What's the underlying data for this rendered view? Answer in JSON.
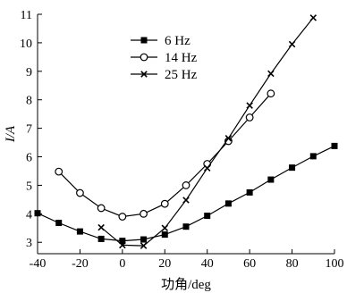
{
  "chart_data": {
    "type": "line",
    "title": "",
    "xlabel": "功角/deg",
    "ylabel": "I/A",
    "xlim": [
      -40,
      100
    ],
    "ylim": [
      2.6,
      11
    ],
    "xticks": [
      -40,
      -20,
      0,
      20,
      40,
      60,
      80,
      100
    ],
    "yticks": [
      3,
      4,
      5,
      6,
      7,
      8,
      9,
      10,
      11
    ],
    "grid": false,
    "legend_position": "top-left",
    "series": [
      {
        "name": "6 Hz",
        "marker": "square",
        "x": [
          -40,
          -30,
          -20,
          -10,
          0,
          10,
          20,
          30,
          40,
          50,
          60,
          70,
          80,
          90,
          100
        ],
        "y": [
          4.02,
          3.68,
          3.38,
          3.12,
          3.05,
          3.1,
          3.27,
          3.55,
          3.93,
          4.36,
          4.75,
          5.2,
          5.62,
          6.02,
          6.38
        ]
      },
      {
        "name": "14 Hz",
        "marker": "circle",
        "x": [
          -30,
          -20,
          -10,
          0,
          10,
          20,
          30,
          40,
          50,
          60,
          70
        ],
        "y": [
          5.48,
          4.73,
          4.2,
          3.9,
          4.0,
          4.35,
          5.0,
          5.75,
          6.55,
          7.38,
          8.22
        ]
      },
      {
        "name": "25 Hz",
        "marker": "x",
        "x": [
          -10,
          0,
          10,
          20,
          30,
          40,
          50,
          60,
          70,
          80,
          90
        ],
        "y": [
          3.52,
          2.9,
          2.88,
          3.5,
          4.48,
          5.6,
          6.65,
          7.8,
          8.92,
          9.95,
          10.88
        ]
      }
    ]
  }
}
